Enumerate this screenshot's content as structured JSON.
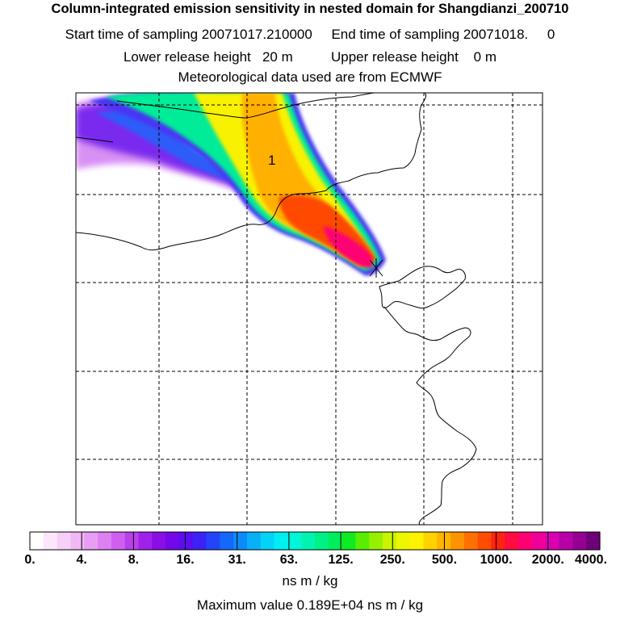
{
  "header": {
    "title": "Column-integrated emission sensitivity in nested domain for Shangdianzi_200710",
    "sampling_line": "Start time of sampling 20071017.210000     End time of sampling 20071018.     0",
    "height_line": "Lower release height   20 m          Upper release height    0 m",
    "met_line": "Meteorological data used are from ECMWF"
  },
  "map": {
    "point_label": "1"
  },
  "colorbar": {
    "tick_labels": [
      "0.",
      "4.",
      "8.",
      "16.",
      "31.",
      "63.",
      "125.",
      "250.",
      "500.",
      "1000.",
      "2000.",
      "4000."
    ],
    "colors": [
      "#ffffff",
      "#fbe6fb",
      "#f6d0f8",
      "#f2b8f6",
      "#e89ef4",
      "#dd80f2",
      "#cf60ef",
      "#b940ec",
      "#a022ea",
      "#8a0ee6",
      "#7308e8",
      "#5a0ef0",
      "#3c22f6",
      "#2444fa",
      "#1468fa",
      "#0c8cfa",
      "#08b0f8",
      "#04d2f6",
      "#00eef2",
      "#00f6d8",
      "#00f4b0",
      "#00f088",
      "#00ee5a",
      "#10ea20",
      "#58ee00",
      "#96f000",
      "#c8f400",
      "#ecf800",
      "#fff200",
      "#ffd200",
      "#ffb400",
      "#ff9400",
      "#ff7000",
      "#ff4c00",
      "#ff2410",
      "#ff0c40",
      "#ff0074",
      "#f0009a",
      "#d800b0",
      "#b800a8",
      "#960092",
      "#6e0078"
    ],
    "unit": "ns m / kg"
  },
  "footer": {
    "max_value": "Maximum value  0.189E+04 ns m / kg"
  },
  "colors": {
    "plume_outer": "#a022ea",
    "plume_mid": "#00eef2",
    "plume_core": "#ffd200",
    "plume_peak": "#ff0074"
  }
}
